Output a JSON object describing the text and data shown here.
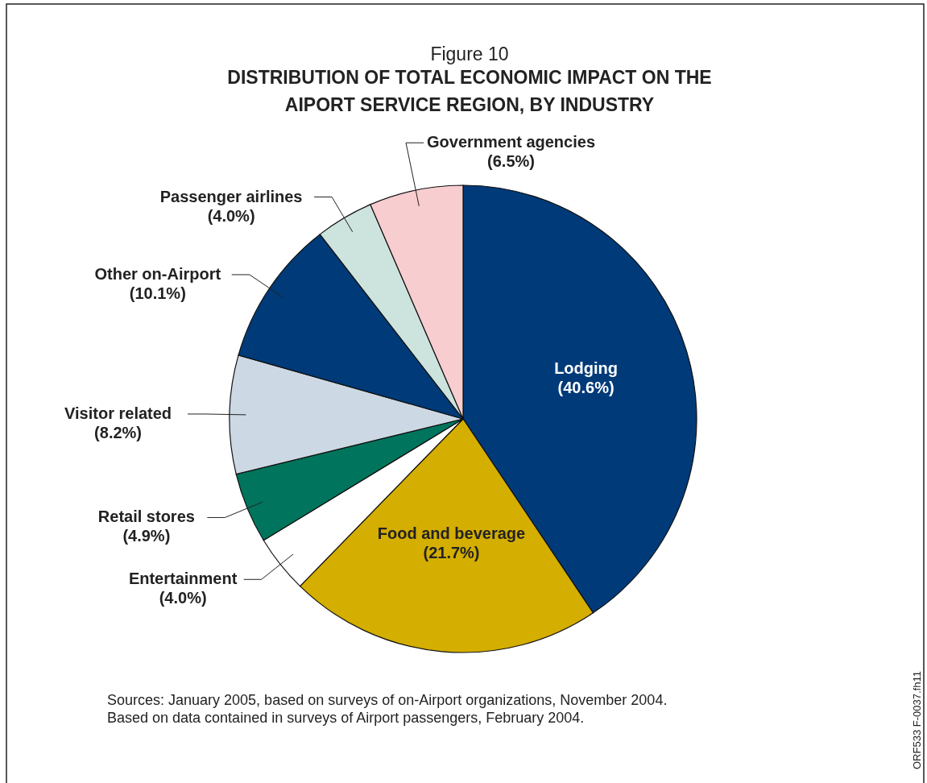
{
  "chart_data": {
    "type": "pie",
    "title": "Figure 10",
    "subtitle": "DISTRIBUTION OF TOTAL ECONOMIC IMPACT ON THE AIPORT SERVICE REGION, BY INDUSTRY",
    "categories": [
      "Lodging",
      "Food and beverage",
      "Entertainment",
      "Retail stores",
      "Visitor related",
      "Other on-Airport",
      "Passenger airlines",
      "Government agencies"
    ],
    "values": [
      40.6,
      21.7,
      4.0,
      4.9,
      8.2,
      10.1,
      4.0,
      6.5
    ],
    "value_labels": [
      "(40.6%)",
      "(21.7%)",
      "(4.0%)",
      "(4.9%)",
      "(8.2%)",
      "(10.1%)",
      "(4.0%)",
      "(6.5%)"
    ],
    "colors": [
      "#003a78",
      "#d4ae00",
      "#ffffff",
      "#00745c",
      "#ccd8e4",
      "#003a78",
      "#cde3de",
      "#f7cdd0"
    ],
    "annotations": [
      "Sources: January 2005, based on surveys of on-Airport organizations, November 2004. Based on data contained in surveys of Airport passengers, February 2004.",
      "ORF533 F-0037.fh11"
    ]
  }
}
